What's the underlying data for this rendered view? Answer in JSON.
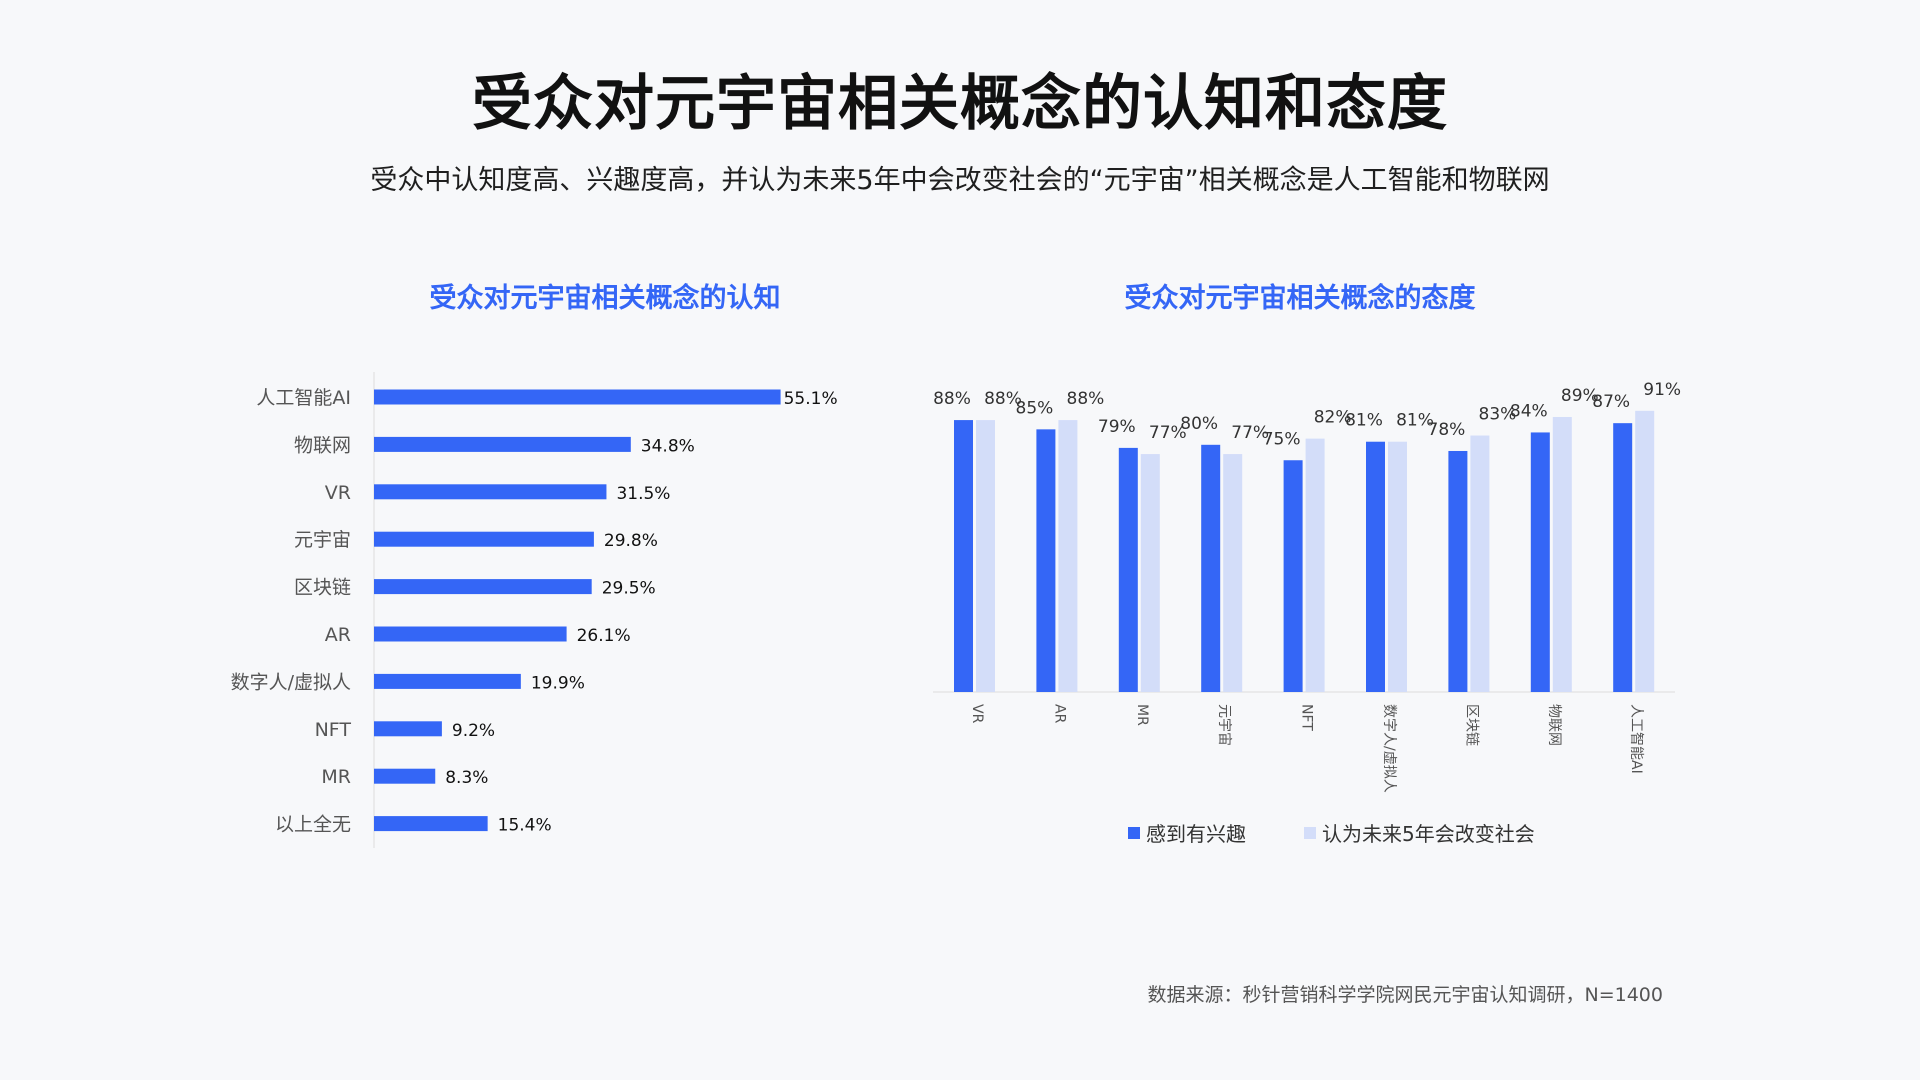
{
  "title": "受众对元宇宙相关概念的认知和态度",
  "subtitle": "受众中认知度高、兴趣度高，并认为未来5年中会改变社会的“元宇宙”相关概念是人工智能和物联网",
  "source": "数据来源：秒针营销科学学院网民元宇宙认知调研，N=1400",
  "colors": {
    "primary": "#3466f6",
    "secondary": "#d3ddf9",
    "title_blue": "#3466f6"
  },
  "chart_data": [
    {
      "type": "bar",
      "orientation": "horizontal",
      "title": "受众对元宇宙相关概念的认知",
      "categories": [
        "人工智能AI",
        "物联网",
        "VR",
        "元宇宙",
        "区块链",
        "AR",
        "数字人/虚拟人",
        "NFT",
        "MR",
        "以上全无"
      ],
      "values": [
        55.1,
        34.8,
        31.5,
        29.8,
        29.5,
        26.1,
        19.9,
        9.2,
        8.3,
        15.4
      ],
      "labels": [
        "55.1%",
        "34.8%",
        "31.5%",
        "29.8%",
        "29.5%",
        "26.1%",
        "19.9%",
        "9.2%",
        "8.3%",
        "15.4%"
      ],
      "xlim": [
        0,
        58
      ]
    },
    {
      "type": "bar",
      "orientation": "vertical",
      "title": "受众对元宇宙相关概念的态度",
      "categories": [
        "VR",
        "AR",
        "MR",
        "元宇宙",
        "NFT",
        "数字人/虚拟人",
        "区块链",
        "物联网",
        "人工智能AI"
      ],
      "series": [
        {
          "name": "感到有兴趣",
          "values": [
            88,
            85,
            79,
            80,
            75,
            81,
            78,
            84,
            87
          ],
          "labels": [
            "88%",
            "85%",
            "79%",
            "80%",
            "75%",
            "81%",
            "78%",
            "84%",
            "87%"
          ]
        },
        {
          "name": "认为未来5年会改变社会",
          "values": [
            88,
            88,
            77,
            77,
            82,
            81,
            83,
            89,
            91
          ],
          "labels": [
            "88%",
            "88%",
            "77%",
            "77%",
            "82%",
            "81%",
            "83%",
            "89%",
            "91%"
          ]
        }
      ],
      "ylim": [
        0,
        100
      ],
      "legend": "bottom"
    }
  ]
}
